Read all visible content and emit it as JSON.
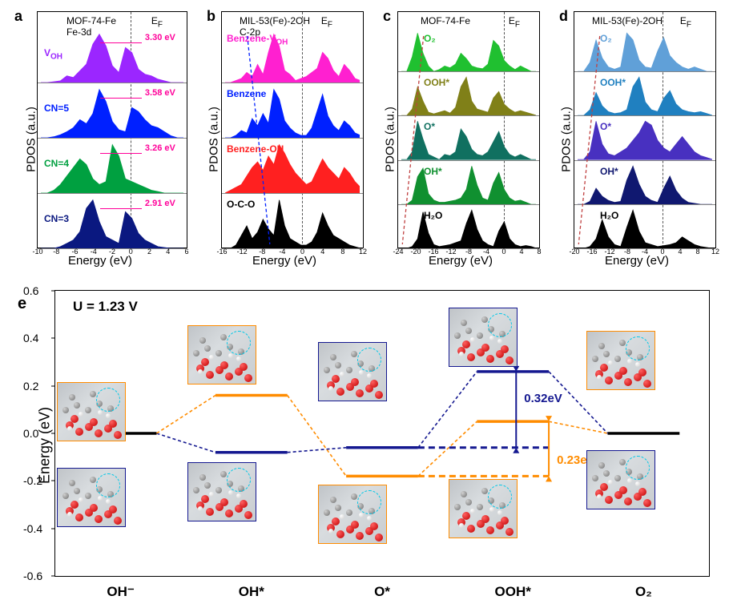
{
  "panels": {
    "a": {
      "label": "a",
      "title1": "MOF-74-Fe",
      "title2": "Fe-3d",
      "ylabel": "PDOS (a.u.)",
      "xlabel": "Energy (eV)",
      "ef": "E",
      "efsub": "F",
      "xlim": [
        -10,
        6
      ],
      "xticks": [
        -10,
        -8,
        -6,
        -4,
        -2,
        0,
        2,
        4,
        6
      ],
      "ef_pos": 0.625,
      "series": [
        {
          "label": "V",
          "sub": "OH",
          "color": "#9b26ff",
          "annot": "3.30 eV",
          "annot_x": 0.72,
          "data": [
            0,
            0,
            1,
            2,
            8,
            6,
            14,
            22,
            46,
            58,
            44,
            20,
            12,
            42,
            36,
            16,
            10,
            8,
            4,
            2,
            0,
            0,
            0
          ]
        },
        {
          "label": "CN=5",
          "color": "#0020ff",
          "annot": "3.58 eV",
          "annot_x": 0.72,
          "data": [
            0,
            0,
            1,
            3,
            6,
            10,
            18,
            14,
            24,
            48,
            36,
            16,
            8,
            6,
            30,
            26,
            18,
            12,
            10,
            6,
            2,
            0,
            0
          ]
        },
        {
          "label": "CN=4",
          "color": "#00a040",
          "annot": "3.26 eV",
          "annot_x": 0.72,
          "data": [
            0,
            0,
            2,
            6,
            12,
            18,
            24,
            20,
            10,
            6,
            8,
            34,
            26,
            10,
            8,
            6,
            4,
            2,
            1,
            0,
            0,
            0,
            0
          ]
        },
        {
          "label": "CN=3",
          "color": "#0a1880",
          "annot": "2.91 eV",
          "annot_x": 0.72,
          "data": [
            0,
            0,
            0,
            2,
            6,
            10,
            20,
            48,
            58,
            32,
            14,
            10,
            6,
            44,
            36,
            18,
            10,
            6,
            2,
            1,
            0,
            0,
            0
          ]
        }
      ]
    },
    "b": {
      "label": "b",
      "title1": "MIL-53(Fe)-2OH",
      "title2": "C-2p",
      "ylabel": "PDOS (a.u.)",
      "xlabel": "Energy (eV)",
      "ef": "E",
      "efsub": "F",
      "xlim": [
        -16,
        12
      ],
      "xticks": [
        -16,
        -12,
        -8,
        -4,
        0,
        4,
        8,
        12
      ],
      "ef_pos": 0.571,
      "guide": {
        "dx": 0.04,
        "color": "#0020ff"
      },
      "series": [
        {
          "label": "Benzene-V",
          "sub": "OH",
          "color": "#ff20d0",
          "data": [
            0,
            0,
            2,
            4,
            10,
            6,
            18,
            8,
            30,
            48,
            36,
            12,
            8,
            2,
            4,
            6,
            10,
            14,
            30,
            24,
            12,
            6,
            18,
            12,
            4,
            2
          ]
        },
        {
          "label": "Benzene",
          "color": "#0020ff",
          "data": [
            0,
            0,
            2,
            6,
            4,
            16,
            10,
            20,
            12,
            40,
            32,
            14,
            8,
            4,
            2,
            2,
            8,
            22,
            36,
            18,
            10,
            6,
            14,
            10,
            4,
            2
          ]
        },
        {
          "label": "Benzene-OH",
          "color": "#ff2020",
          "data": [
            0,
            2,
            4,
            6,
            12,
            18,
            22,
            16,
            26,
            20,
            34,
            28,
            20,
            14,
            10,
            6,
            8,
            16,
            24,
            18,
            14,
            10,
            18,
            14,
            8,
            4
          ]
        },
        {
          "label": "O-C-O",
          "color": "#000000",
          "data": [
            0,
            0,
            2,
            8,
            14,
            6,
            10,
            18,
            12,
            8,
            30,
            14,
            6,
            4,
            2,
            2,
            4,
            10,
            22,
            14,
            8,
            6,
            4,
            2,
            1,
            0
          ]
        }
      ]
    },
    "c": {
      "label": "c",
      "title1": "MOF-74-Fe",
      "ylabel": "PDOS (a.u.)",
      "xlabel": "Energy (eV)",
      "ef": "E",
      "efsub": "F",
      "xlim": [
        -24,
        8
      ],
      "xticks": [
        -24,
        -20,
        -16,
        -12,
        -8,
        -4,
        0,
        4,
        8
      ],
      "ef_pos": 0.75,
      "guide": {
        "dx": -0.03,
        "color": "#c04040"
      },
      "series": [
        {
          "label": "O₂",
          "color": "#20c030",
          "data": [
            0,
            0,
            16,
            42,
            20,
            6,
            0,
            2,
            6,
            4,
            8,
            20,
            14,
            6,
            4,
            3,
            8,
            34,
            28,
            12,
            6,
            2,
            6,
            3,
            0,
            0
          ]
        },
        {
          "label": "OOH*",
          "color": "#808018",
          "data": [
            0,
            0,
            8,
            36,
            18,
            4,
            2,
            4,
            6,
            3,
            10,
            36,
            48,
            18,
            8,
            6,
            4,
            22,
            30,
            14,
            8,
            4,
            6,
            4,
            2,
            0
          ]
        },
        {
          "label": "O*",
          "color": "#107060",
          "data": [
            0,
            0,
            6,
            30,
            16,
            4,
            2,
            0,
            4,
            3,
            6,
            24,
            18,
            8,
            4,
            3,
            6,
            14,
            22,
            10,
            4,
            2,
            4,
            2,
            0,
            0
          ]
        },
        {
          "label": "OH*",
          "color": "#109030",
          "data": [
            0,
            0,
            4,
            26,
            34,
            10,
            4,
            2,
            2,
            3,
            4,
            6,
            14,
            36,
            18,
            6,
            4,
            20,
            30,
            14,
            6,
            3,
            4,
            2,
            0,
            0
          ]
        },
        {
          "label": "H₂O",
          "color": "#000000",
          "data": [
            0,
            0,
            2,
            10,
            38,
            16,
            4,
            2,
            3,
            4,
            6,
            8,
            26,
            40,
            20,
            8,
            4,
            2,
            18,
            28,
            10,
            4,
            2,
            3,
            2,
            0
          ]
        }
      ]
    },
    "d": {
      "label": "d",
      "title1": "MIL-53(Fe)-2OH",
      "ylabel": "PDOS (a.u.)",
      "xlabel": "Energy (eV)",
      "ef": "E",
      "efsub": "F",
      "xlim": [
        -20,
        12
      ],
      "xticks": [
        -20,
        -16,
        -12,
        -8,
        -4,
        0,
        4,
        8,
        12
      ],
      "ef_pos": 0.625,
      "guide": {
        "dx": -0.03,
        "color": "#c04040"
      },
      "series": [
        {
          "label": "O₂",
          "color": "#60a0d8",
          "data": [
            0,
            0,
            8,
            28,
            12,
            4,
            2,
            4,
            34,
            28,
            10,
            4,
            3,
            18,
            30,
            14,
            8,
            4,
            2,
            4,
            2,
            0,
            0
          ]
        },
        {
          "label": "OOH*",
          "color": "#2080c0",
          "data": [
            0,
            0,
            6,
            24,
            10,
            4,
            2,
            3,
            6,
            30,
            40,
            14,
            6,
            4,
            18,
            26,
            12,
            6,
            4,
            3,
            4,
            2,
            0
          ]
        },
        {
          "label": "O*",
          "color": "#4830c0",
          "data": [
            0,
            0,
            4,
            20,
            8,
            3,
            2,
            4,
            6,
            10,
            14,
            20,
            18,
            10,
            6,
            4,
            8,
            12,
            8,
            4,
            2,
            1,
            0
          ]
        },
        {
          "label": "OH*",
          "color": "#101870",
          "data": [
            0,
            0,
            3,
            16,
            8,
            4,
            2,
            3,
            24,
            38,
            20,
            8,
            4,
            2,
            16,
            28,
            14,
            6,
            2,
            1,
            0,
            0,
            0
          ]
        },
        {
          "label": "H₂O",
          "color": "#000000",
          "data": [
            0,
            0,
            2,
            10,
            30,
            12,
            4,
            2,
            22,
            40,
            18,
            6,
            4,
            2,
            3,
            4,
            6,
            12,
            8,
            4,
            2,
            1,
            0
          ]
        }
      ]
    }
  },
  "panel_e": {
    "label": "e",
    "condition": "U = 1.23 V",
    "ylabel": "Energy (eV)",
    "ylim": [
      -0.6,
      0.6
    ],
    "yticks": [
      -0.6,
      -0.4,
      -0.2,
      0.0,
      0.2,
      0.4,
      0.6
    ],
    "steps": [
      "OH⁻",
      "OH*",
      "O*",
      "OOH*",
      "O₂"
    ],
    "colors": {
      "black": "#000000",
      "navy": "#141890",
      "orange": "#ff8c00"
    },
    "levels": {
      "black": {
        "OH-": 0.0,
        "O2": 0.0
      },
      "navy": {
        "OH*": -0.08,
        "O*": -0.06,
        "OOH*": 0.26
      },
      "orange": {
        "OH*": 0.16,
        "O*": -0.18,
        "OOH*": 0.05
      }
    },
    "barrier_navy": "0.32eV",
    "barrier_orange": "0.23eV"
  }
}
